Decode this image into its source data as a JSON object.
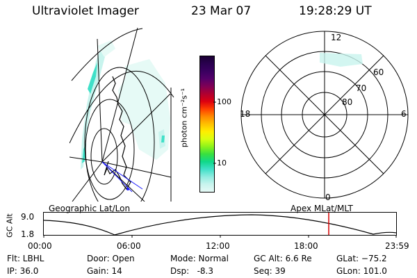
{
  "header": {
    "title": "Ultraviolet Imager",
    "date": "23 Mar 07",
    "time": "19:28:29 UT"
  },
  "colorbar": {
    "label": "photon cm⁻²s⁻¹",
    "tick_100": "100",
    "tick_10": "10",
    "colors": [
      "#1a0033",
      "#2a0050",
      "#3a0060",
      "#55006a",
      "#800055",
      "#b00030",
      "#dd0010",
      "#ff4000",
      "#ff8a00",
      "#ffc000",
      "#ffee00",
      "#d8ff10",
      "#8cf21a",
      "#38e040",
      "#10d88a",
      "#40e0c8",
      "#90ece0",
      "#c8f4ee",
      "#e6faf6"
    ]
  },
  "geo_map": {
    "caption": "Geographic Lat/Lon"
  },
  "polar": {
    "caption": "Apex MLat/MLT",
    "mlt_top": "12",
    "mlt_left": "18",
    "mlt_right": "6",
    "mlt_bottom": "0",
    "lat_60": "60",
    "lat_70": "70",
    "lat_80": "80"
  },
  "altitude_plot": {
    "ylabel": "GC Alt",
    "ymax": "9.0",
    "ymin": "1.8",
    "xticks": [
      "00:00",
      "06:00",
      "12:00",
      "18:00",
      "23:59"
    ],
    "marker_color": "#d40000"
  },
  "status": {
    "flt": "Flt: LBHL",
    "ip": "IP: 36.0",
    "door": "Door: Open",
    "gain": "Gain: 14",
    "mode": "Mode: Normal",
    "dsp": "Dsp:   -8.3",
    "gc_alt": "GC Alt: 6.6 Re",
    "seq": "Seq: 39",
    "glat": "GLat: −75.2",
    "glon": "GLon: 101.0"
  }
}
